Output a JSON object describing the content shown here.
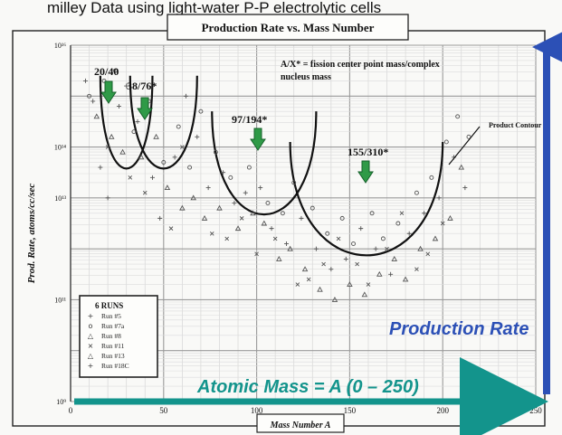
{
  "top_banner_text": "milley Data using light-water P-P electrolytic cells",
  "chart_data": {
    "type": "scatter",
    "title": "Production Rate vs. Mass Number",
    "xlabel": "Mass Number A",
    "ylabel": "Prod. Rate, atoms/cc/sec",
    "xlim": [
      0,
      250
    ],
    "ylim": [
      9,
      16
    ],
    "ylog": true,
    "x_ticks": [
      0,
      50,
      100,
      150,
      200,
      250
    ],
    "y_ticks": [
      {
        "exp": 9,
        "label": "10⁹"
      },
      {
        "exp": 11,
        "label": "10¹¹"
      },
      {
        "exp": 13,
        "label": "10¹³"
      },
      {
        "exp": 14,
        "label": "10¹⁴"
      },
      {
        "exp": 16,
        "label": "10¹⁶"
      }
    ],
    "grid": true,
    "annotation_note": "A/X* = fission center point mass/complex nucleus mass",
    "product_contour_label": "Product Contour",
    "overlay_x_label": "Atomic Mass = A (0 – 250)",
    "overlay_y_label": "Production Rate",
    "markers": [
      {
        "label": "20/40",
        "x": 22
      },
      {
        "label": "38/76*",
        "x": 40
      },
      {
        "label": "97/194*",
        "x": 102
      },
      {
        "label": "155/310*",
        "x": 160
      }
    ],
    "legend": {
      "title": "6 RUNS",
      "position": "bottom-left",
      "entries": [
        {
          "name": "Run #5",
          "symbol": "+"
        },
        {
          "name": "Run #7a",
          "symbol": "o"
        },
        {
          "name": "Run #8",
          "symbol": "△"
        },
        {
          "name": "Run #11",
          "symbol": "×"
        },
        {
          "name": "Run #13",
          "symbol": "△"
        },
        {
          "name": "Run #18C",
          "symbol": "+"
        }
      ]
    },
    "series": [
      {
        "symbol": "+",
        "points": [
          [
            8,
            15.3
          ],
          [
            12,
            14.9
          ],
          [
            16,
            13.6
          ],
          [
            20,
            13.0
          ],
          [
            26,
            14.8
          ],
          [
            30,
            15.2
          ],
          [
            36,
            14.5
          ],
          [
            44,
            13.4
          ],
          [
            48,
            12.6
          ],
          [
            56,
            13.8
          ],
          [
            62,
            15.0
          ],
          [
            68,
            14.2
          ],
          [
            74,
            13.2
          ],
          [
            82,
            13.5
          ],
          [
            88,
            12.9
          ],
          [
            94,
            13.1
          ],
          [
            102,
            13.2
          ],
          [
            108,
            12.4
          ],
          [
            116,
            12.1
          ],
          [
            124,
            12.6
          ],
          [
            132,
            12.0
          ],
          [
            140,
            11.6
          ],
          [
            148,
            11.8
          ],
          [
            156,
            12.4
          ],
          [
            164,
            12.0
          ],
          [
            172,
            11.5
          ],
          [
            182,
            12.3
          ],
          [
            190,
            12.7
          ],
          [
            198,
            13.0
          ],
          [
            206,
            13.8
          ],
          [
            212,
            13.2
          ]
        ]
      },
      {
        "symbol": "o",
        "points": [
          [
            10,
            15.0
          ],
          [
            18,
            15.3
          ],
          [
            24,
            15.5
          ],
          [
            34,
            14.3
          ],
          [
            42,
            14.9
          ],
          [
            50,
            13.7
          ],
          [
            58,
            14.4
          ],
          [
            64,
            13.6
          ],
          [
            70,
            14.7
          ],
          [
            78,
            13.9
          ],
          [
            86,
            13.4
          ],
          [
            96,
            13.6
          ],
          [
            106,
            12.9
          ],
          [
            114,
            12.7
          ],
          [
            120,
            13.3
          ],
          [
            130,
            12.8
          ],
          [
            138,
            12.3
          ],
          [
            146,
            12.6
          ],
          [
            152,
            12.1
          ],
          [
            162,
            12.7
          ],
          [
            168,
            12.2
          ],
          [
            176,
            12.5
          ],
          [
            186,
            13.1
          ],
          [
            194,
            13.4
          ],
          [
            202,
            14.1
          ],
          [
            208,
            14.6
          ],
          [
            214,
            14.2
          ]
        ]
      },
      {
        "symbol": "△",
        "points": [
          [
            14,
            14.6
          ],
          [
            22,
            14.2
          ],
          [
            28,
            13.9
          ],
          [
            38,
            13.8
          ],
          [
            46,
            14.2
          ],
          [
            52,
            13.2
          ],
          [
            60,
            12.8
          ],
          [
            66,
            13.0
          ],
          [
            72,
            12.6
          ],
          [
            80,
            12.8
          ],
          [
            90,
            12.4
          ],
          [
            98,
            12.7
          ],
          [
            104,
            12.5
          ],
          [
            112,
            11.8
          ],
          [
            118,
            12.0
          ],
          [
            126,
            11.6
          ],
          [
            134,
            11.2
          ],
          [
            142,
            11.0
          ],
          [
            150,
            11.3
          ],
          [
            158,
            11.1
          ],
          [
            166,
            11.5
          ],
          [
            174,
            11.8
          ],
          [
            180,
            11.4
          ],
          [
            188,
            12.0
          ],
          [
            196,
            12.2
          ],
          [
            204,
            12.6
          ],
          [
            210,
            13.6
          ]
        ]
      },
      {
        "symbol": "×",
        "points": [
          [
            20,
            14.0
          ],
          [
            32,
            13.4
          ],
          [
            40,
            13.1
          ],
          [
            54,
            12.4
          ],
          [
            60,
            14.0
          ],
          [
            76,
            12.3
          ],
          [
            84,
            12.2
          ],
          [
            92,
            12.6
          ],
          [
            100,
            11.9
          ],
          [
            110,
            12.2
          ],
          [
            122,
            11.3
          ],
          [
            128,
            11.4
          ],
          [
            136,
            11.7
          ],
          [
            144,
            12.2
          ],
          [
            154,
            11.7
          ],
          [
            160,
            11.3
          ],
          [
            170,
            12.0
          ],
          [
            178,
            12.7
          ],
          [
            186,
            11.6
          ],
          [
            192,
            11.9
          ],
          [
            200,
            12.5
          ]
        ]
      }
    ],
    "bowls": [
      {
        "x0": 16,
        "x1": 44,
        "y_top": 15.4,
        "y_bottom": 13.6
      },
      {
        "x0": 32,
        "x1": 68,
        "y_top": 15.4,
        "y_bottom": 13.6
      },
      {
        "x0": 76,
        "x1": 132,
        "y_top": 14.7,
        "y_bottom": 12.7
      },
      {
        "x0": 118,
        "x1": 200,
        "y_top": 14.1,
        "y_bottom": 11.9
      }
    ]
  }
}
